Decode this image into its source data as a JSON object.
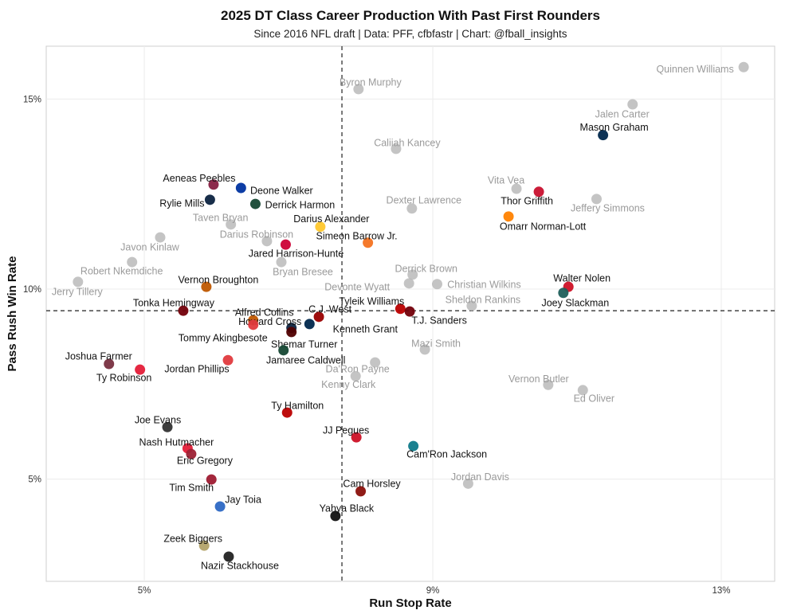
{
  "chart_data": {
    "type": "scatter",
    "title": "2025 DT Class Career Production With Past First Rounders",
    "subtitle": "Since 2016 NFL draft | Data: PFF, cfbfastr | Chart: @fball_insights",
    "xlabel": "Run Stop Rate",
    "ylabel": "Pass Rush Win Rate",
    "xlim": [
      3.64,
      13.74
    ],
    "ylim": [
      2.31,
      16.39
    ],
    "x_ticks": [
      5,
      9,
      13
    ],
    "x_tick_labels": [
      "5%",
      "9%",
      "13%"
    ],
    "y_ticks": [
      5,
      10,
      15
    ],
    "y_tick_labels": [
      "5%",
      "10%",
      "15%"
    ],
    "grid": true,
    "reference_lines": {
      "x": 7.74,
      "y": 9.43,
      "style": "dashed"
    },
    "series": [
      {
        "name": "2025 DT Class",
        "text_color": "#111111",
        "points": [
          {
            "label": "Mason Graham",
            "x": 11.36,
            "y": 14.05,
            "color": "#00274c"
          },
          {
            "label": "Thor Griffith",
            "x": 10.47,
            "y": 12.56,
            "color": "#c8102e"
          },
          {
            "label": "Omarr Norman-Lott",
            "x": 10.05,
            "y": 11.91,
            "color": "#ff8200"
          },
          {
            "label": "Aeneas Peebles",
            "x": 5.96,
            "y": 12.75,
            "color": "#861f41"
          },
          {
            "label": "Deone Walker",
            "x": 6.34,
            "y": 12.66,
            "color": "#0033a0"
          },
          {
            "label": "Rylie Mills",
            "x": 5.91,
            "y": 12.35,
            "color": "#0c2340"
          },
          {
            "label": "Derrick Harmon",
            "x": 6.54,
            "y": 12.24,
            "color": "#154733"
          },
          {
            "label": "Darius Alexander",
            "x": 7.44,
            "y": 11.64,
            "color": "#ffc72c"
          },
          {
            "label": "Simeon Barrow Jr.",
            "x": 8.1,
            "y": 11.22,
            "color": "#f47321"
          },
          {
            "label": "Jared Harrison-Hunte",
            "x": 6.96,
            "y": 11.17,
            "color": "#cc0035"
          },
          {
            "label": "Vernon Broughton",
            "x": 5.86,
            "y": 10.06,
            "color": "#bf5700"
          },
          {
            "label": "Walter Nolen",
            "x": 10.88,
            "y": 10.06,
            "color": "#ce1126"
          },
          {
            "label": "Joey Slackman",
            "x": 10.81,
            "y": 9.9,
            "color": "#1f5f5b"
          },
          {
            "label": "Tonka Hemingway",
            "x": 5.54,
            "y": 9.43,
            "color": "#73000a"
          },
          {
            "label": "Tyleik Williams",
            "x": 8.55,
            "y": 9.48,
            "color": "#bb0000"
          },
          {
            "label": "T.J. Sanders",
            "x": 8.68,
            "y": 9.41,
            "color": "#73000a"
          },
          {
            "label": "Alfred Collins",
            "x": 6.51,
            "y": 9.18,
            "color": "#bf5700"
          },
          {
            "label": "Howard Cross",
            "x": 7.04,
            "y": 8.98,
            "color": "#0c2340"
          },
          {
            "label": "C.J. West",
            "x": 7.42,
            "y": 9.27,
            "color": "#990000"
          },
          {
            "label": "Kenneth Grant",
            "x": 7.29,
            "y": 9.08,
            "color": "#00274c"
          },
          {
            "label": "Shemar Turner",
            "x": 7.04,
            "y": 8.87,
            "color": "#500000"
          },
          {
            "label": "Tommy Akingbesote",
            "x": 6.51,
            "y": 9.06,
            "color": "#e03a3e"
          },
          {
            "label": "Jamaree Caldwell",
            "x": 6.93,
            "y": 8.39,
            "color": "#154733"
          },
          {
            "label": "Jordan Phillips",
            "x": 6.16,
            "y": 8.13,
            "color": "#e03a3e"
          },
          {
            "label": "Joshua Farmer",
            "x": 4.51,
            "y": 8.03,
            "color": "#782f40"
          },
          {
            "label": "Ty Robinson",
            "x": 4.94,
            "y": 7.88,
            "color": "#e41c38"
          },
          {
            "label": "Ty Hamilton",
            "x": 6.98,
            "y": 6.75,
            "color": "#bb0000"
          },
          {
            "label": "Joe Evans",
            "x": 5.32,
            "y": 6.37,
            "color": "#333333"
          },
          {
            "label": "JJ Pegues",
            "x": 7.94,
            "y": 6.1,
            "color": "#ce1126"
          },
          {
            "label": "Nash Hutmacher",
            "x": 5.6,
            "y": 5.81,
            "color": "#e41c38"
          },
          {
            "label": "Cam'Ron Jackson",
            "x": 8.73,
            "y": 5.87,
            "color": "#0f7a8a"
          },
          {
            "label": "Eric Gregory",
            "x": 5.65,
            "y": 5.66,
            "color": "#9d2235"
          },
          {
            "label": "Tim Smith",
            "x": 5.93,
            "y": 4.99,
            "color": "#9e1b32"
          },
          {
            "label": "Cam Horsley",
            "x": 8.0,
            "y": 4.68,
            "color": "#8a100b"
          },
          {
            "label": "Jay Toia",
            "x": 6.05,
            "y": 4.28,
            "color": "#2d68c4"
          },
          {
            "label": "Yahya Black",
            "x": 7.65,
            "y": 4.03,
            "color": "#111111"
          },
          {
            "label": "Zeek Biggers",
            "x": 5.83,
            "y": 3.25,
            "color": "#b3a369"
          },
          {
            "label": "Nazir Stackhouse",
            "x": 6.17,
            "y": 2.96,
            "color": "#222222"
          }
        ]
      },
      {
        "name": "Past First Rounders",
        "text_color": "#9a9a9a",
        "points": [
          {
            "label": "Quinnen Williams",
            "x": 13.31,
            "y": 15.84,
            "color": "#b5b5b5"
          },
          {
            "label": "Jalen Carter",
            "x": 11.77,
            "y": 14.86,
            "color": "#b5b5b5"
          },
          {
            "label": "Byron Murphy",
            "x": 7.97,
            "y": 15.26,
            "color": "#b5b5b5"
          },
          {
            "label": "Caliiah Kancey",
            "x": 8.49,
            "y": 13.69,
            "color": "#b5b5b5"
          },
          {
            "label": "Vita Vea",
            "x": 10.16,
            "y": 12.64,
            "color": "#b5b5b5"
          },
          {
            "label": "Jeffery Simmons",
            "x": 11.27,
            "y": 12.37,
            "color": "#b5b5b5"
          },
          {
            "label": "Dexter Lawrence",
            "x": 8.71,
            "y": 12.12,
            "color": "#b5b5b5"
          },
          {
            "label": "Taven Bryan",
            "x": 6.2,
            "y": 11.7,
            "color": "#b5b5b5"
          },
          {
            "label": "Darius Robinson",
            "x": 6.7,
            "y": 11.26,
            "color": "#b5b5b5"
          },
          {
            "label": "Javon Kinlaw",
            "x": 5.22,
            "y": 11.36,
            "color": "#b5b5b5"
          },
          {
            "label": "Robert Nkemdiche",
            "x": 4.83,
            "y": 10.71,
            "color": "#b5b5b5"
          },
          {
            "label": "Bryan Bresee",
            "x": 6.9,
            "y": 10.71,
            "color": "#b5b5b5"
          },
          {
            "label": "Derrick Brown",
            "x": 8.72,
            "y": 10.38,
            "color": "#b5b5b5"
          },
          {
            "label": "Jerry Tillery",
            "x": 4.08,
            "y": 10.19,
            "color": "#b5b5b5"
          },
          {
            "label": "Devonte Wyatt",
            "x": 8.67,
            "y": 10.15,
            "color": "#b5b5b5"
          },
          {
            "label": "Christian Wilkins",
            "x": 9.06,
            "y": 10.13,
            "color": "#b5b5b5"
          },
          {
            "label": "Sheldon Rankins",
            "x": 9.54,
            "y": 9.56,
            "color": "#b5b5b5"
          },
          {
            "label": "Mazi Smith",
            "x": 8.89,
            "y": 8.41,
            "color": "#b5b5b5"
          },
          {
            "label": "Da'Ron Payne",
            "x": 8.2,
            "y": 8.07,
            "color": "#b5b5b5"
          },
          {
            "label": "Kenny Clark",
            "x": 7.93,
            "y": 7.71,
            "color": "#b5b5b5"
          },
          {
            "label": "Vernon Butler",
            "x": 10.6,
            "y": 7.48,
            "color": "#b5b5b5"
          },
          {
            "label": "Ed Oliver",
            "x": 11.08,
            "y": 7.34,
            "color": "#b5b5b5"
          },
          {
            "label": "Jordan Davis",
            "x": 9.49,
            "y": 4.88,
            "color": "#b5b5b5"
          }
        ]
      }
    ]
  }
}
